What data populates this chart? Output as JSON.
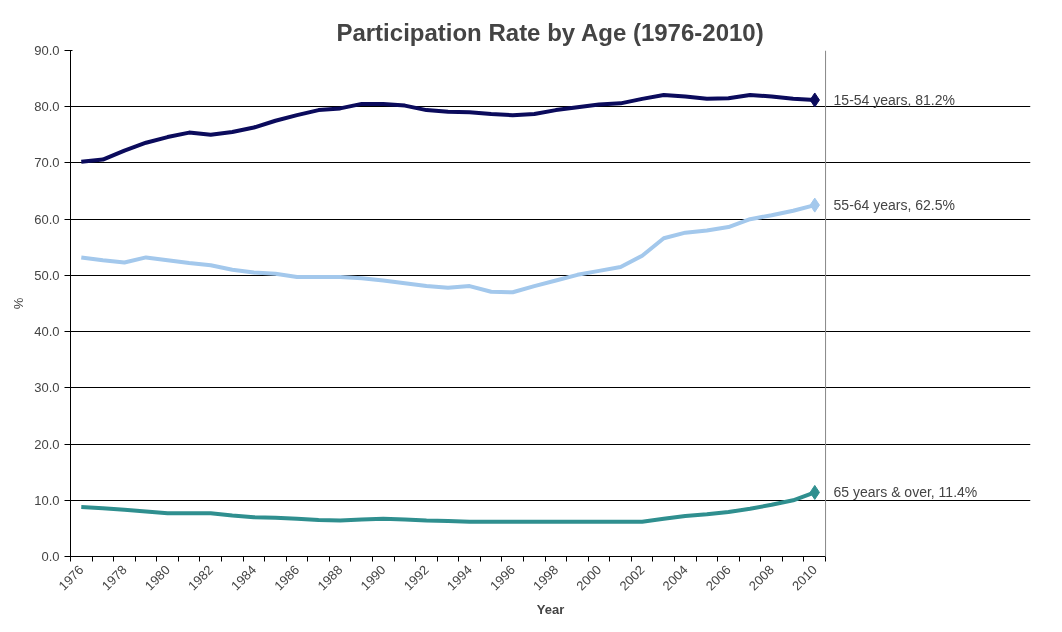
{
  "chart_data": {
    "type": "line",
    "title": "Participation Rate by Age (1976-2010)",
    "xlabel": "Year",
    "ylabel": "%",
    "categories": [
      "1976",
      null,
      "1978",
      null,
      "1980",
      null,
      "1982",
      null,
      "1984",
      null,
      "1986",
      null,
      "1988",
      null,
      "1990",
      null,
      "1992",
      null,
      "1994",
      null,
      "1996",
      null,
      "1998",
      null,
      "2000",
      null,
      "2002",
      null,
      "2004",
      null,
      "2006",
      null,
      "2008",
      null,
      "2010"
    ],
    "series": [
      {
        "color": "#0b0b5c",
        "values": [
          70.2,
          70.6,
          72.2,
          73.6,
          74.6,
          75.4,
          75.0,
          75.5,
          76.3,
          77.5,
          78.5,
          79.4,
          79.7,
          80.5,
          80.5,
          80.2,
          79.4,
          79.1,
          79.0,
          78.7,
          78.5,
          78.7,
          79.4,
          79.9,
          80.4,
          80.6,
          81.4,
          82.1,
          81.8,
          81.4,
          81.5,
          82.1,
          81.8,
          81.4,
          81.2
        ]
      },
      {
        "color": "#a3c8ec",
        "values": [
          53.2,
          52.7,
          52.3,
          53.2,
          52.7,
          52.2,
          51.8,
          51.0,
          50.5,
          50.3,
          49.7,
          49.7,
          49.7,
          49.5,
          49.1,
          48.6,
          48.1,
          47.8,
          48.1,
          47.1,
          47.0,
          48.1,
          49.1,
          50.1,
          50.8,
          51.5,
          53.5,
          56.6,
          57.6,
          58.0,
          58.6,
          60.0,
          60.7,
          61.5,
          62.5
        ]
      },
      {
        "color": "#2f8f8f",
        "values": [
          8.8,
          8.6,
          8.3,
          8.0,
          7.7,
          7.7,
          7.7,
          7.3,
          7.0,
          6.9,
          6.7,
          6.5,
          6.4,
          6.6,
          6.7,
          6.6,
          6.4,
          6.3,
          6.2,
          6.2,
          6.2,
          6.2,
          6.2,
          6.2,
          6.2,
          6.2,
          6.2,
          6.7,
          7.2,
          7.5,
          7.9,
          8.5,
          9.2,
          10.0,
          11.4
        ]
      }
    ],
    "ylim": [
      0,
      90
    ],
    "yticks": [
      {
        "value": 0,
        "label": "0.0"
      },
      {
        "value": 10,
        "label": "10.0"
      },
      {
        "value": 20,
        "label": "20.0"
      },
      {
        "value": 30,
        "label": "30.0"
      },
      {
        "value": 40,
        "label": "40.0"
      },
      {
        "value": 50,
        "label": "50.0"
      },
      {
        "value": 60,
        "label": "60.0"
      },
      {
        "value": 70,
        "label": "70.0"
      },
      {
        "value": 80,
        "label": "80.0"
      },
      {
        "value": 90,
        "label": "90.0"
      }
    ],
    "grid": "y",
    "annotations": [
      {
        "text": "15-54 years, 81.2%",
        "x": "2010",
        "y": 81.2
      },
      {
        "text": "55-64 years, 62.5%",
        "x": "2010",
        "y": 62.5
      },
      {
        "text": "65 years & over, 11.4%",
        "x": "2010",
        "y": 11.4
      }
    ]
  }
}
